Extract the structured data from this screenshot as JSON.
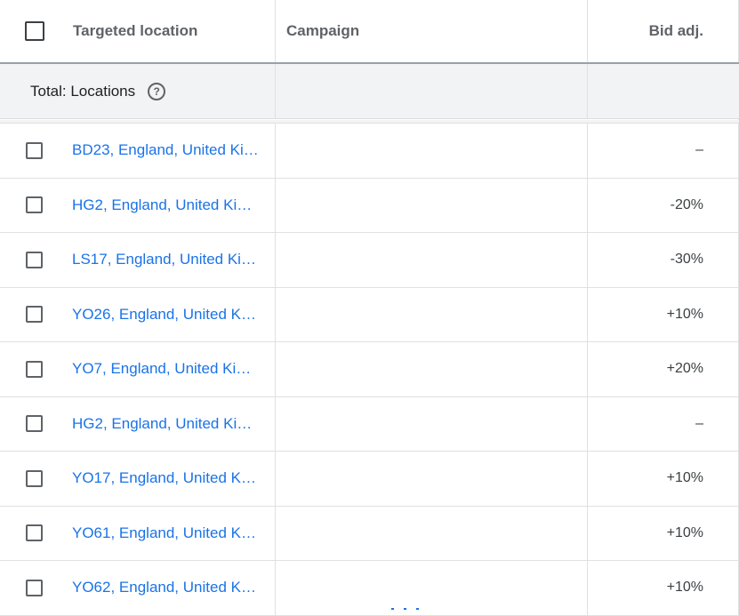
{
  "header": {
    "location_label": "Targeted location",
    "campaign_label": "Campaign",
    "bid_label": "Bid adj."
  },
  "total": {
    "label": "Total: Locations",
    "help_glyph": "?"
  },
  "rows": [
    {
      "location": "BD23, England, United Ki…",
      "bid": "–"
    },
    {
      "location": "HG2, England, United Kin…",
      "bid": "-20%"
    },
    {
      "location": "LS17, England, United Ki…",
      "bid": "-30%"
    },
    {
      "location": "YO26, England, United Ki…",
      "bid": "+10%"
    },
    {
      "location": "YO7, England, United Kin…",
      "bid": "+20%"
    },
    {
      "location": "HG2, England, United Kin…",
      "bid": "–"
    },
    {
      "location": "YO17, England, United Ki…",
      "bid": "+10%"
    },
    {
      "location": "YO61, England, United Ki…",
      "bid": "+10%"
    },
    {
      "location": "YO62, England, United Ki…",
      "bid": "+10%"
    }
  ],
  "colors": {
    "link": "#1a73e8",
    "header_text": "#5f6368",
    "row_border": "#e0e0e0",
    "total_bg": "#f1f3f4"
  }
}
